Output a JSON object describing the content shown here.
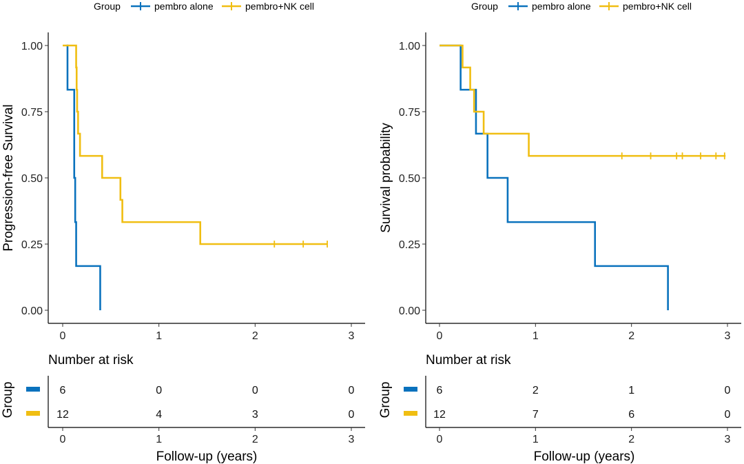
{
  "legend": {
    "title": "Group",
    "items": [
      {
        "label": "pembro alone",
        "color": "#0a72bd"
      },
      {
        "label": "pembro+NK cell",
        "color": "#f0be12"
      }
    ]
  },
  "risk_table": {
    "title": "Number at risk",
    "row_label": "Group",
    "xlabel": "Follow-up (years)"
  },
  "chart_data": [
    {
      "type": "line",
      "subtype": "kaplan-meier step",
      "title": "",
      "xlabel": "",
      "ylabel": "Progression-free Survival",
      "xlim": [
        0,
        3
      ],
      "ylim": [
        0,
        1
      ],
      "x_ticks": [
        0,
        1,
        2,
        3
      ],
      "x_tick_labels": [
        "0",
        "1",
        "2",
        "3"
      ],
      "y_ticks": [
        0,
        0.25,
        0.5,
        0.75,
        1
      ],
      "y_tick_labels": [
        "0.00",
        "0.25",
        "0.50",
        "0.75",
        "1.00"
      ],
      "grid": false,
      "legend_position": "top",
      "series": [
        {
          "name": "pembro alone",
          "color": "#0a72bd",
          "steps": [
            [
              0.04,
              1.0
            ],
            [
              0.05,
              0.833
            ],
            [
              0.12,
              0.5
            ],
            [
              0.13,
              0.333
            ],
            [
              0.14,
              0.167
            ],
            [
              0.39,
              0.0
            ]
          ],
          "censored": []
        },
        {
          "name": "pembro+NK cell",
          "color": "#f0be12",
          "steps": [
            [
              0.0,
              1.0
            ],
            [
              0.14,
              0.917
            ],
            [
              0.145,
              0.833
            ],
            [
              0.15,
              0.75
            ],
            [
              0.16,
              0.667
            ],
            [
              0.18,
              0.583
            ],
            [
              0.41,
              0.5
            ],
            [
              0.6,
              0.417
            ],
            [
              0.62,
              0.333
            ],
            [
              1.43,
              0.25
            ],
            [
              2.75,
              0.25
            ]
          ],
          "censored": [
            [
              2.2,
              0.25
            ],
            [
              2.5,
              0.25
            ],
            [
              2.75,
              0.25
            ]
          ]
        }
      ],
      "risk_table": {
        "times": [
          0,
          1,
          2,
          3
        ],
        "rows": [
          {
            "name": "pembro alone",
            "counts": [
              "6",
              "0",
              "0",
              "0"
            ]
          },
          {
            "name": "pembro+NK cell",
            "counts": [
              "12",
              "4",
              "3",
              "0"
            ]
          }
        ]
      }
    },
    {
      "type": "line",
      "subtype": "kaplan-meier step",
      "title": "",
      "xlabel": "",
      "ylabel": "Survival probability",
      "xlim": [
        0,
        3
      ],
      "ylim": [
        0,
        1
      ],
      "x_ticks": [
        0,
        1,
        2,
        3
      ],
      "x_tick_labels": [
        "0",
        "1",
        "2",
        "3"
      ],
      "y_ticks": [
        0,
        0.25,
        0.5,
        0.75,
        1
      ],
      "y_tick_labels": [
        "0.00",
        "0.25",
        "0.50",
        "0.75",
        "1.00"
      ],
      "grid": false,
      "legend_position": "top",
      "series": [
        {
          "name": "pembro alone",
          "color": "#0a72bd",
          "steps": [
            [
              0.0,
              1.0
            ],
            [
              0.22,
              0.833
            ],
            [
              0.38,
              0.667
            ],
            [
              0.5,
              0.5
            ],
            [
              0.71,
              0.333
            ],
            [
              1.62,
              0.167
            ],
            [
              2.38,
              0.0
            ]
          ],
          "censored": []
        },
        {
          "name": "pembro+NK cell",
          "color": "#f0be12",
          "steps": [
            [
              0.0,
              1.0
            ],
            [
              0.24,
              0.917
            ],
            [
              0.32,
              0.833
            ],
            [
              0.36,
              0.75
            ],
            [
              0.46,
              0.667
            ],
            [
              0.93,
              0.583
            ],
            [
              2.98,
              0.583
            ]
          ],
          "censored": [
            [
              1.9,
              0.583
            ],
            [
              2.2,
              0.583
            ],
            [
              2.47,
              0.583
            ],
            [
              2.53,
              0.583
            ],
            [
              2.72,
              0.583
            ],
            [
              2.88,
              0.583
            ],
            [
              2.97,
              0.583
            ]
          ]
        }
      ],
      "risk_table": {
        "times": [
          0,
          1,
          2,
          3
        ],
        "rows": [
          {
            "name": "pembro alone",
            "counts": [
              "6",
              "2",
              "1",
              "0"
            ]
          },
          {
            "name": "pembro+NK cell",
            "counts": [
              "12",
              "7",
              "6",
              "0"
            ]
          }
        ]
      }
    }
  ]
}
